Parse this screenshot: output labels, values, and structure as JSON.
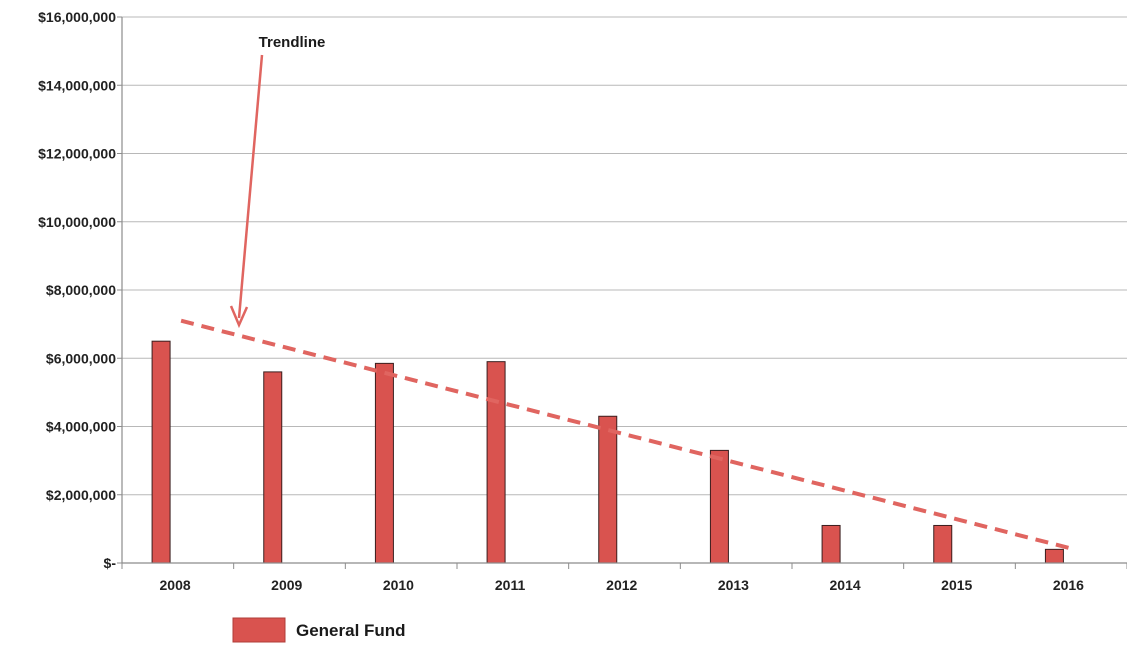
{
  "chart_data": {
    "type": "bar",
    "title": "",
    "xlabel": "",
    "ylabel": "",
    "categories": [
      "2008",
      "2009",
      "2010",
      "2011",
      "2012",
      "2013",
      "2014",
      "2015",
      "2016"
    ],
    "series": [
      {
        "name": "General Fund",
        "values": [
          6500000,
          5600000,
          5850000,
          5900000,
          4300000,
          3300000,
          1100000,
          1100000,
          400000
        ],
        "color": "#d9534f"
      }
    ],
    "ylim": [
      0,
      16000000
    ],
    "y_ticks": [
      0,
      2000000,
      4000000,
      6000000,
      8000000,
      10000000,
      12000000,
      14000000,
      16000000
    ],
    "y_tick_labels": [
      "$-",
      "$2,000,000",
      "$4,000,000",
      "$6,000,000",
      "$8,000,000",
      "$10,000,000",
      "$12,000,000",
      "$14,000,000",
      "$16,000,000"
    ],
    "grid": true,
    "legend_position": "bottom-left",
    "trendline": {
      "style": "dashed",
      "color": "#e06560",
      "start_value": 7100000,
      "end_value": 400000
    },
    "annotation": {
      "text": "Trendline",
      "color": "#e06560"
    },
    "colors": {
      "bar_fill": "#d9534f",
      "bar_edge": "#3a1f1f",
      "grid": "#b8b8b8",
      "axis": "#8c8c8c"
    }
  }
}
